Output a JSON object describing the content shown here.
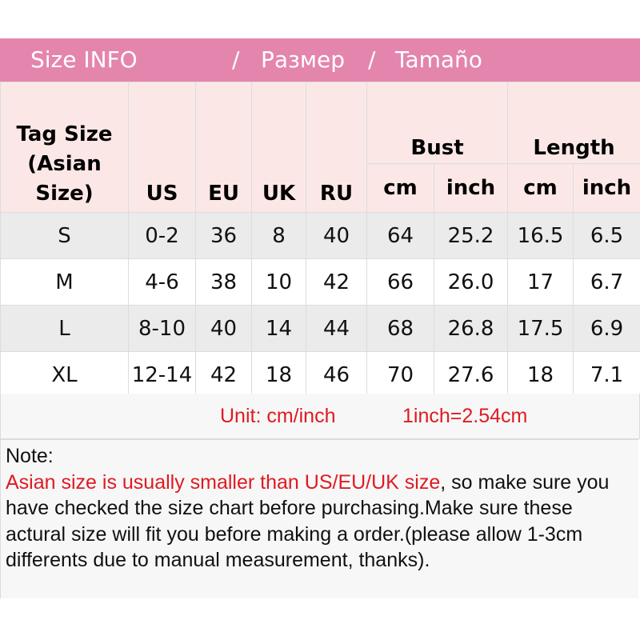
{
  "title": {
    "part1": "Size INFO",
    "sep1": "/",
    "part2": "Размер",
    "sep2": "/",
    "part3": "Tamaño"
  },
  "colors": {
    "title_bar": "#e485ae",
    "header_bg": "#fbe8e6",
    "row_alt": "#ebebeb",
    "accent_red": "#e01a22"
  },
  "headers": {
    "tag": [
      "Tag Size",
      "(Asian",
      "Size)"
    ],
    "us": "US",
    "eu": "EU",
    "uk": "UK",
    "ru": "RU",
    "bust": "Bust",
    "length": "Length",
    "bust_cm": "cm",
    "bust_inch": "inch",
    "length_cm": "cm",
    "length_inch": "inch"
  },
  "rows": [
    [
      "S",
      "0-2",
      "36",
      "8",
      "40",
      "64",
      "25.2",
      "16.5",
      "6.5"
    ],
    [
      "M",
      "4-6",
      "38",
      "10",
      "42",
      "66",
      "26.0",
      "17",
      "6.7"
    ],
    [
      "L",
      "8-10",
      "40",
      "14",
      "44",
      "68",
      "26.8",
      "17.5",
      "6.9"
    ],
    [
      "XL",
      "12-14",
      "42",
      "18",
      "46",
      "70",
      "27.6",
      "18",
      "7.1"
    ]
  ],
  "unit": {
    "label": "Unit: cm/inch",
    "conversion": "1inch=2.54cm"
  },
  "note": {
    "heading": "Note:",
    "warning": "Asian size is usually smaller than US/EU/UK size",
    "body": ", so make sure you have checked the size chart before purchasing.Make sure these actural size will fit you before making a order.(please allow 1-3cm differents due to manual measurement, thanks)."
  }
}
